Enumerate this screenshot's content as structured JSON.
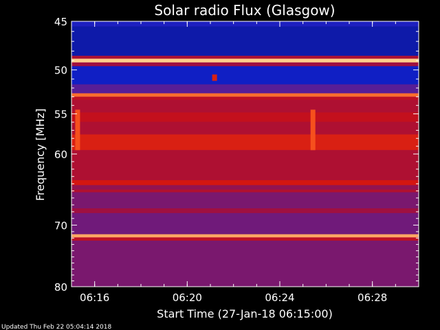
{
  "chart_data": {
    "type": "heatmap",
    "title": "Solar radio Flux (Glasgow)",
    "xlabel": "Start Time (27-Jan-18 06:15:00)",
    "ylabel": "Frequency [MHz]",
    "x_ticks": [
      "06:16",
      "06:20",
      "06:24",
      "06:28"
    ],
    "y_ticks": [
      45,
      50,
      55,
      60,
      70,
      80
    ],
    "xlim": [
      "06:15:00",
      "06:30:00"
    ],
    "ylim": [
      45,
      80
    ],
    "y_scale": "log",
    "colormap": [
      "#0a0a5a",
      "#1020c8",
      "#5020a0",
      "#a01040",
      "#d01010",
      "#ff6020",
      "#ffe8a0"
    ],
    "bands": [
      {
        "from": 45.0,
        "to": 45.5,
        "level": 0.2
      },
      {
        "from": 45.5,
        "to": 48.5,
        "level": 0.12
      },
      {
        "from": 48.5,
        "to": 48.8,
        "level": 0.55
      },
      {
        "from": 48.8,
        "to": 49.2,
        "level": 0.97
      },
      {
        "from": 49.2,
        "to": 49.6,
        "level": 0.5
      },
      {
        "from": 49.6,
        "to": 51.6,
        "level": 0.16
      },
      {
        "from": 51.6,
        "to": 52.6,
        "level": 0.35
      },
      {
        "from": 52.6,
        "to": 53.0,
        "level": 0.85
      },
      {
        "from": 53.0,
        "to": 53.4,
        "level": 0.6
      },
      {
        "from": 53.4,
        "to": 54.8,
        "level": 0.55
      },
      {
        "from": 54.8,
        "to": 56.0,
        "level": 0.62
      },
      {
        "from": 56.0,
        "to": 57.5,
        "level": 0.55
      },
      {
        "from": 57.5,
        "to": 59.5,
        "level": 0.7
      },
      {
        "from": 59.5,
        "to": 63.5,
        "level": 0.55
      },
      {
        "from": 63.5,
        "to": 64.2,
        "level": 0.68
      },
      {
        "from": 64.2,
        "to": 64.8,
        "level": 0.47
      },
      {
        "from": 64.8,
        "to": 65.2,
        "level": 0.56
      },
      {
        "from": 65.2,
        "to": 67.5,
        "level": 0.42
      },
      {
        "from": 67.5,
        "to": 68.2,
        "level": 0.5
      },
      {
        "from": 68.2,
        "to": 71.4,
        "level": 0.4
      },
      {
        "from": 71.4,
        "to": 71.9,
        "level": 0.92
      },
      {
        "from": 71.9,
        "to": 72.4,
        "level": 0.6
      },
      {
        "from": 72.4,
        "to": 80.0,
        "level": 0.42
      }
    ],
    "events": [
      {
        "time": "06:15:15",
        "from": 54.5,
        "to": 59.5,
        "level": 0.8
      },
      {
        "time": "06:25:25",
        "from": 54.5,
        "to": 59.5,
        "level": 0.8
      },
      {
        "time": "06:21:10",
        "from": 50.5,
        "to": 51.2,
        "level": 0.7
      }
    ]
  },
  "footer": {
    "updated": "Updated Thu Feb 22 05:04:14 2018"
  }
}
